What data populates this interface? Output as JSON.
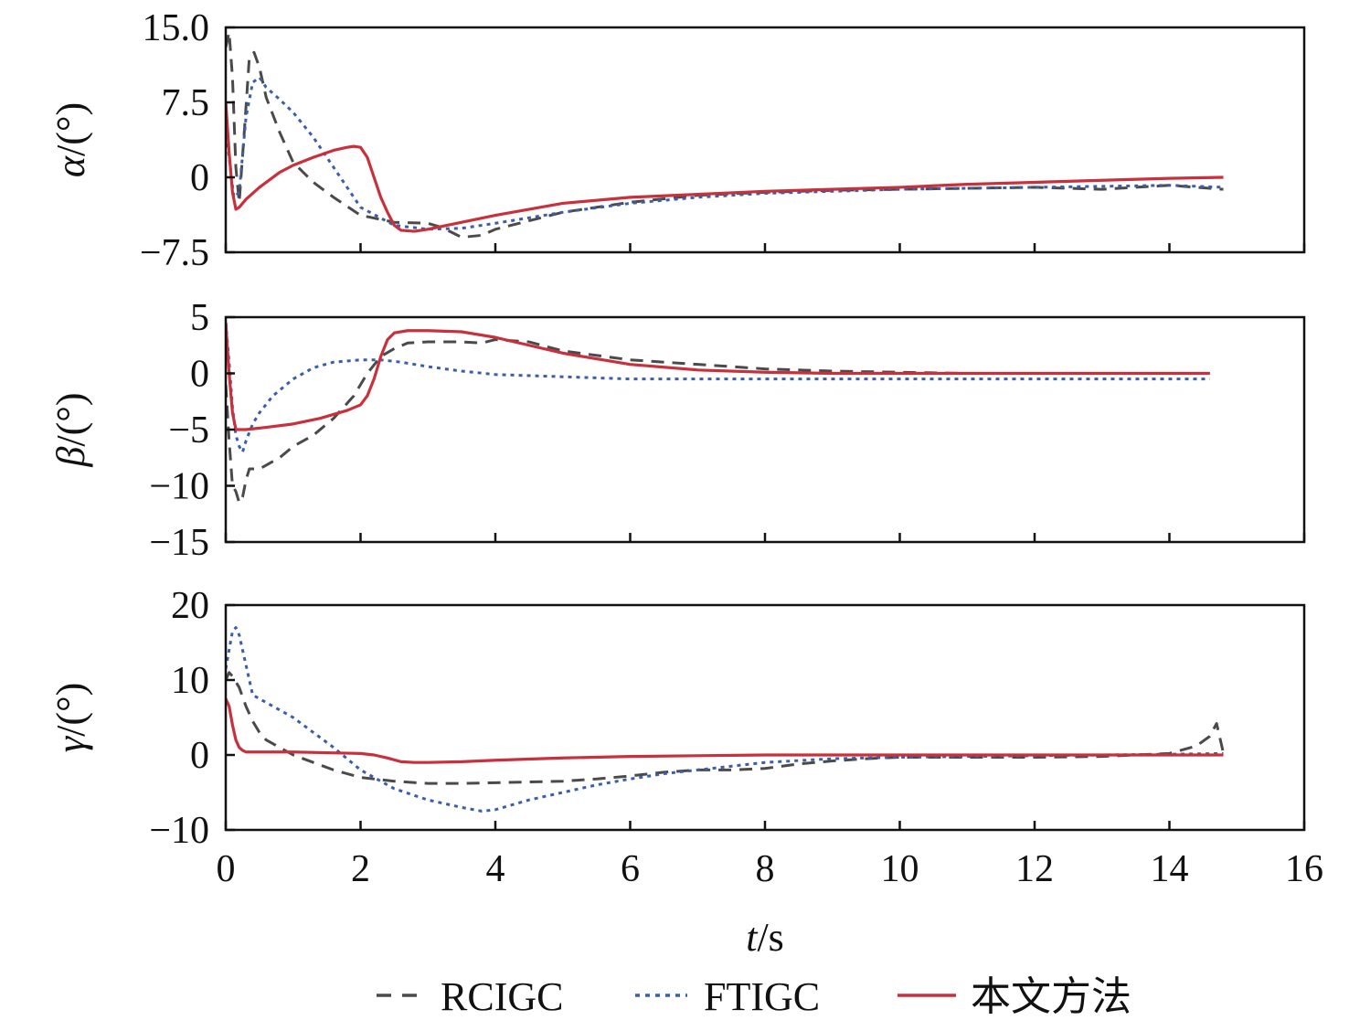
{
  "chart_data": {
    "type": "line",
    "colors": {
      "RCIGC": "#4a4a4a",
      "FTIGC": "#3a5fa8",
      "proposed": "#c8313c"
    },
    "legend": {
      "placement": "bottom-center",
      "items": [
        "RCIGC",
        "FTIGC",
        "本文方法"
      ]
    },
    "xlabel": {
      "italic": "t",
      "rest": "/s"
    },
    "xlim": [
      0,
      16
    ],
    "xticks": [
      "0",
      "2",
      "4",
      "6",
      "8",
      "10",
      "12",
      "14",
      "16"
    ],
    "grid": false,
    "panels": [
      {
        "ylabel": {
          "greek": "α",
          "rest": "/(°)"
        },
        "ylim": [
          -7.5,
          15.0
        ],
        "yticks": [
          {
            "v": 15.0,
            "t": "15.0"
          },
          {
            "v": 7.5,
            "t": "7.5"
          },
          {
            "v": 0,
            "t": "0"
          },
          {
            "v": -7.5,
            "t": "−7.5"
          }
        ],
        "series": [
          {
            "name": "RCIGC",
            "style": "dashed",
            "x": [
              0.0,
              0.05,
              0.1,
              0.15,
              0.2,
              0.28,
              0.35,
              0.42,
              0.5,
              0.6,
              0.8,
              1.0,
              1.3,
              1.6,
              2.0,
              2.5,
              3.0,
              3.2,
              3.5,
              3.8,
              4.0,
              5.0,
              6.0,
              7.0,
              8.0,
              9.0,
              10.0,
              11.0,
              12.0,
              13.0,
              14.0,
              14.8
            ],
            "y": [
              13.0,
              14.5,
              10.0,
              1.0,
              -2.5,
              5.0,
              12.0,
              12.5,
              11.0,
              8.0,
              4.5,
              1.5,
              -0.5,
              -2.0,
              -3.8,
              -4.5,
              -4.6,
              -5.0,
              -6.0,
              -5.8,
              -5.2,
              -3.5,
              -2.5,
              -1.8,
              -1.5,
              -1.3,
              -1.2,
              -1.1,
              -1.0,
              -1.2,
              -0.8,
              -1.2
            ]
          },
          {
            "name": "FTIGC",
            "style": "dotted",
            "x": [
              0.0,
              0.05,
              0.12,
              0.2,
              0.3,
              0.4,
              0.5,
              0.6,
              0.8,
              1.0,
              1.3,
              1.6,
              2.0,
              2.5,
              3.0,
              3.5,
              4.0,
              5.0,
              6.0,
              7.0,
              8.0,
              9.0,
              10.0,
              11.0,
              12.0,
              13.0,
              14.0,
              14.8
            ],
            "y": [
              5.0,
              2.0,
              -2.0,
              -1.5,
              6.0,
              9.5,
              10.0,
              9.0,
              7.8,
              6.5,
              4.0,
              1.0,
              -3.0,
              -4.8,
              -5.2,
              -5.1,
              -4.6,
              -3.5,
              -2.6,
              -2.0,
              -1.6,
              -1.4,
              -1.2,
              -1.1,
              -1.0,
              -0.9,
              -0.8,
              -1.0
            ]
          },
          {
            "name": "本文方法",
            "style": "solid",
            "x": [
              0.0,
              0.05,
              0.1,
              0.15,
              0.2,
              0.3,
              0.5,
              0.8,
              1.0,
              1.3,
              1.6,
              1.8,
              1.9,
              2.0,
              2.1,
              2.2,
              2.3,
              2.4,
              2.5,
              2.6,
              2.8,
              3.0,
              3.5,
              4.0,
              5.0,
              6.0,
              7.0,
              8.0,
              9.0,
              10.0,
              11.0,
              12.0,
              13.0,
              14.0,
              14.8
            ],
            "y": [
              7.5,
              2.5,
              -1.5,
              -3.2,
              -3.0,
              -2.2,
              -1.0,
              0.5,
              1.2,
              2.0,
              2.7,
              3.0,
              3.1,
              3.0,
              2.0,
              0.0,
              -2.0,
              -3.5,
              -4.8,
              -5.3,
              -5.4,
              -5.2,
              -4.5,
              -3.8,
              -2.6,
              -2.0,
              -1.7,
              -1.4,
              -1.2,
              -1.0,
              -0.7,
              -0.5,
              -0.3,
              -0.1,
              0.0
            ]
          }
        ]
      },
      {
        "ylabel": {
          "greek": "β",
          "rest": "/(°)"
        },
        "ylim": [
          -15,
          5
        ],
        "yticks": [
          {
            "v": 5,
            "t": "5"
          },
          {
            "v": 0,
            "t": "0"
          },
          {
            "v": -5,
            "t": "−5"
          },
          {
            "v": -10,
            "t": "−10"
          },
          {
            "v": -15,
            "t": "−15"
          }
        ],
        "series": [
          {
            "name": "RCIGC",
            "style": "dashed",
            "x": [
              0.0,
              0.05,
              0.1,
              0.15,
              0.2,
              0.25,
              0.3,
              0.35,
              0.5,
              0.8,
              1.0,
              1.3,
              1.6,
              1.9,
              2.1,
              2.3,
              2.5,
              2.7,
              3.0,
              3.5,
              3.8,
              4.0,
              4.5,
              5.0,
              6.0,
              7.0,
              8.0,
              9.0,
              10.0,
              11.0,
              12.0,
              13.0,
              14.0,
              14.6
            ],
            "y": [
              -1.0,
              -6.0,
              -10.0,
              -10.5,
              -11.5,
              -11.0,
              -9.5,
              -8.5,
              -8.5,
              -7.5,
              -6.5,
              -5.5,
              -4.0,
              -2.0,
              0.0,
              1.5,
              2.2,
              2.7,
              2.8,
              2.8,
              2.7,
              3.0,
              2.8,
              2.0,
              1.2,
              0.8,
              0.4,
              0.2,
              0.1,
              0.0,
              0.0,
              0.0,
              0.0,
              0.0
            ]
          },
          {
            "name": "FTIGC",
            "style": "dotted",
            "x": [
              0.0,
              0.05,
              0.1,
              0.15,
              0.2,
              0.25,
              0.3,
              0.4,
              0.5,
              0.7,
              1.0,
              1.3,
              1.6,
              2.0,
              2.3,
              2.6,
              3.0,
              3.5,
              4.0,
              5.0,
              6.0,
              7.0,
              8.0,
              9.0,
              10.0,
              11.0,
              12.0,
              13.0,
              14.0,
              14.6
            ],
            "y": [
              4.5,
              1.0,
              -3.0,
              -5.5,
              -6.5,
              -7.0,
              -6.0,
              -4.5,
              -3.5,
              -2.0,
              -0.5,
              0.5,
              1.0,
              1.2,
              1.2,
              1.0,
              0.6,
              0.2,
              -0.1,
              -0.3,
              -0.5,
              -0.5,
              -0.5,
              -0.5,
              -0.5,
              -0.5,
              -0.5,
              -0.5,
              -0.5,
              -0.5
            ]
          },
          {
            "name": "本文方法",
            "style": "solid",
            "x": [
              0.0,
              0.05,
              0.1,
              0.15,
              0.3,
              0.6,
              1.0,
              1.4,
              1.8,
              2.0,
              2.1,
              2.2,
              2.3,
              2.4,
              2.5,
              2.7,
              3.0,
              3.5,
              4.0,
              4.5,
              5.0,
              6.0,
              7.0,
              8.0,
              9.0,
              10.0,
              11.0,
              12.0,
              13.0,
              14.0,
              14.6
            ],
            "y": [
              4.5,
              0.0,
              -3.5,
              -5.0,
              -5.0,
              -4.8,
              -4.5,
              -4.0,
              -3.3,
              -2.8,
              -2.0,
              -0.5,
              1.5,
              3.0,
              3.6,
              3.8,
              3.8,
              3.7,
              3.2,
              2.5,
              1.8,
              0.8,
              0.3,
              0.1,
              0.0,
              0.0,
              0.0,
              0.0,
              0.0,
              0.0,
              0.0
            ]
          }
        ]
      },
      {
        "ylabel": {
          "greek": "γ",
          "rest": "/(°)"
        },
        "ylim": [
          -10,
          20
        ],
        "yticks": [
          {
            "v": 20,
            "t": "20"
          },
          {
            "v": 10,
            "t": "10"
          },
          {
            "v": 0,
            "t": "0"
          },
          {
            "v": -10,
            "t": "−10"
          }
        ],
        "series": [
          {
            "name": "RCIGC",
            "style": "dashed",
            "x": [
              0.0,
              0.05,
              0.1,
              0.2,
              0.3,
              0.4,
              0.5,
              0.6,
              0.8,
              1.0,
              1.3,
              1.6,
              2.0,
              2.5,
              3.0,
              3.5,
              4.0,
              4.5,
              5.0,
              5.5,
              6.0,
              6.5,
              7.0,
              7.5,
              8.0,
              8.5,
              9.0,
              9.5,
              10.0,
              11.0,
              12.0,
              13.0,
              14.0,
              14.4,
              14.6,
              14.7,
              14.8
            ],
            "y": [
              10.0,
              11.0,
              10.5,
              9.0,
              6.5,
              4.5,
              3.0,
              2.0,
              1.0,
              0.0,
              -1.0,
              -2.0,
              -3.0,
              -3.5,
              -3.8,
              -3.8,
              -3.7,
              -3.6,
              -3.5,
              -3.2,
              -2.8,
              -2.3,
              -2.0,
              -2.0,
              -1.8,
              -1.2,
              -0.8,
              -0.5,
              -0.3,
              -0.3,
              -0.3,
              -0.2,
              0.2,
              1.2,
              2.5,
              4.2,
              0.3
            ]
          },
          {
            "name": "FTIGC",
            "style": "dotted",
            "x": [
              0.0,
              0.05,
              0.1,
              0.15,
              0.2,
              0.3,
              0.4,
              0.5,
              0.7,
              1.0,
              1.3,
              1.6,
              2.0,
              2.5,
              3.0,
              3.5,
              3.8,
              4.0,
              4.5,
              5.0,
              5.5,
              6.0,
              6.5,
              7.0,
              8.0,
              9.0,
              10.0,
              11.0,
              12.0,
              13.0,
              14.0,
              14.8
            ],
            "y": [
              11.5,
              14.0,
              16.5,
              17.0,
              16.0,
              12.0,
              8.0,
              7.5,
              6.5,
              5.0,
              3.0,
              1.0,
              -2.0,
              -4.5,
              -6.0,
              -7.0,
              -7.5,
              -7.3,
              -6.0,
              -5.0,
              -4.0,
              -3.2,
              -2.5,
              -2.0,
              -1.0,
              -0.5,
              -0.3,
              -0.2,
              -0.1,
              0.0,
              0.1,
              0.2
            ]
          },
          {
            "name": "本文方法",
            "style": "solid",
            "x": [
              0.0,
              0.05,
              0.1,
              0.15,
              0.2,
              0.25,
              0.3,
              0.5,
              1.0,
              1.5,
              2.0,
              2.2,
              2.4,
              2.6,
              2.8,
              3.0,
              3.5,
              4.0,
              5.0,
              6.0,
              7.0,
              8.0,
              9.0,
              10.0,
              11.0,
              12.0,
              13.0,
              14.0,
              14.8
            ],
            "y": [
              7.5,
              6.5,
              4.0,
              2.0,
              1.0,
              0.6,
              0.4,
              0.4,
              0.4,
              0.3,
              0.2,
              0.0,
              -0.4,
              -0.9,
              -1.0,
              -1.0,
              -0.9,
              -0.7,
              -0.4,
              -0.2,
              -0.1,
              0.0,
              0.0,
              0.0,
              0.0,
              0.0,
              0.0,
              0.0,
              0.0
            ]
          }
        ]
      }
    ]
  }
}
